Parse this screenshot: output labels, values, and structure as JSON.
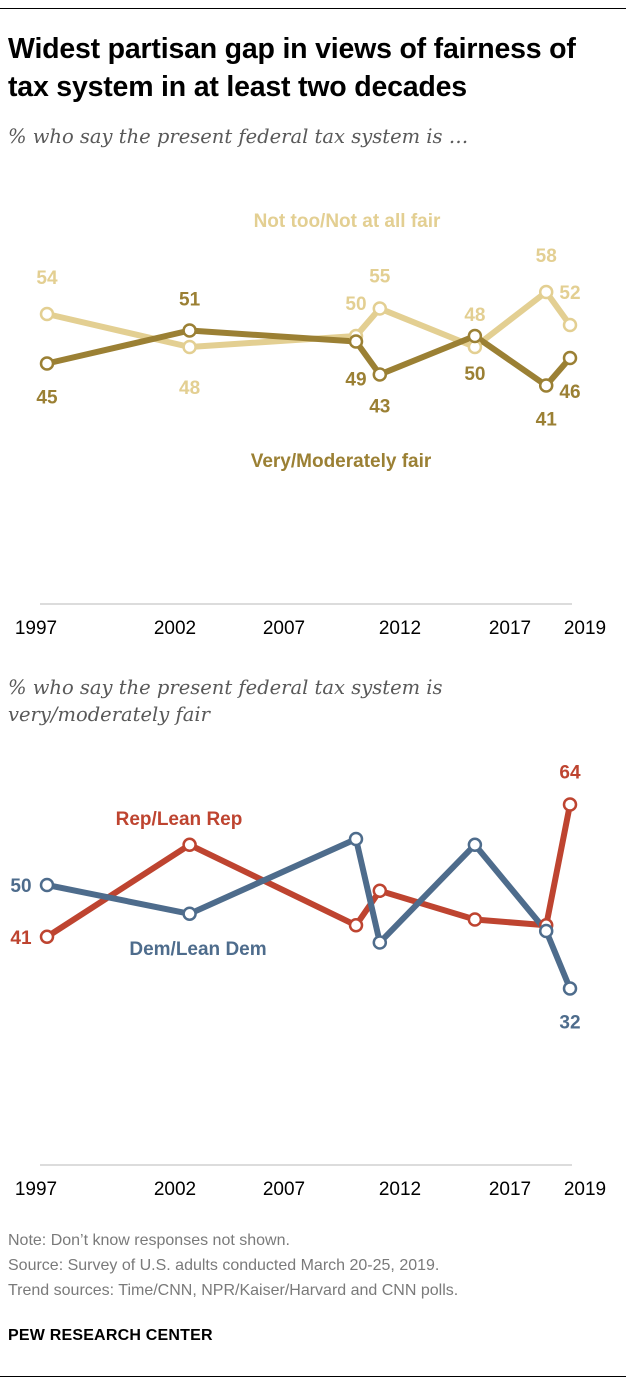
{
  "title": "Widest partisan gap in views of fairness of tax system in at least two decades",
  "note": "Note: Don’t know responses not shown.",
  "source": "Source: Survey of U.S. adults conducted March 20-25, 2019.",
  "trend_sources": "Trend sources: Time/CNN, NPR/Kaiser/Harvard and CNN polls.",
  "brand": "PEW RESEARCH CENTER",
  "colors": {
    "not_fair": "#e3cf92",
    "fair": "#9b8034",
    "rep": "#be4430",
    "dem": "#4e6c8c",
    "axis": "#d0d0d0"
  },
  "chart_data": [
    {
      "type": "line",
      "subtitle": "% who say the present federal tax system is …",
      "xlim": [
        1997,
        2019
      ],
      "x_ticks": [
        "1997",
        "2002",
        "2007",
        "2012",
        "2017",
        "2019"
      ],
      "grid": false,
      "series": [
        {
          "name": "Not too/Not at all fair",
          "color": "#e3cf92",
          "x": [
            1997,
            2003,
            2010,
            2011,
            2015,
            2018,
            2019
          ],
          "values": [
            54,
            48,
            50,
            55,
            48,
            58,
            52
          ]
        },
        {
          "name": "Very/Moderately fair",
          "color": "#9b8034",
          "x": [
            1997,
            2003,
            2010,
            2011,
            2015,
            2018,
            2019
          ],
          "values": [
            45,
            51,
            49,
            43,
            50,
            41,
            46
          ]
        }
      ]
    },
    {
      "type": "line",
      "subtitle": "% who say the present federal tax system is very/moderately fair",
      "xlim": [
        1997,
        2019
      ],
      "x_ticks": [
        "1997",
        "2002",
        "2007",
        "2012",
        "2017",
        "2019"
      ],
      "grid": false,
      "series": [
        {
          "name": "Rep/Lean Rep",
          "color": "#be4430",
          "x": [
            1997,
            2003,
            2010,
            2011,
            2015,
            2018,
            2019
          ],
          "values": [
            41,
            57,
            43,
            49,
            44,
            43,
            64
          ]
        },
        {
          "name": "Dem/Lean Dem",
          "color": "#4e6c8c",
          "x": [
            1997,
            2003,
            2010,
            2011,
            2015,
            2018,
            2019
          ],
          "values": [
            50,
            45,
            58,
            40,
            57,
            42,
            32
          ]
        }
      ],
      "value_labels": {
        "Rep/Lean Rep": [
          "41",
          "",
          "",
          "",
          "",
          "",
          "64"
        ],
        "Dem/Lean Dem": [
          "50",
          "",
          "",
          "",
          "",
          "",
          "32"
        ]
      }
    }
  ]
}
